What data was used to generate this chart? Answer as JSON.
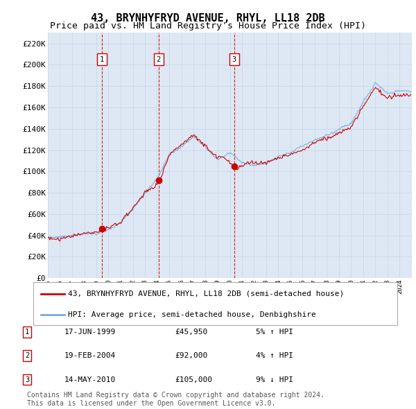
{
  "title": "43, BRYNHYFRYD AVENUE, RHYL, LL18 2DB",
  "subtitle": "Price paid vs. HM Land Registry's House Price Index (HPI)",
  "ylabel_ticks": [
    "£0",
    "£20K",
    "£40K",
    "£60K",
    "£80K",
    "£100K",
    "£120K",
    "£140K",
    "£160K",
    "£180K",
    "£200K",
    "£220K"
  ],
  "ytick_values": [
    0,
    20000,
    40000,
    60000,
    80000,
    100000,
    120000,
    140000,
    160000,
    180000,
    200000,
    220000
  ],
  "ylim": [
    0,
    230000
  ],
  "x_start_year": 1995,
  "x_end_year": 2024,
  "sale_prices": [
    45950,
    92000,
    105000
  ],
  "sale_labels": [
    "1",
    "2",
    "3"
  ],
  "sale_pct": [
    "5% ↑ HPI",
    "4% ↑ HPI",
    "9% ↓ HPI"
  ],
  "sale_date_strs": [
    "17-JUN-1999",
    "19-FEB-2004",
    "14-MAY-2010"
  ],
  "sale_price_strs": [
    "£45,950",
    "£92,000",
    "£105,000"
  ],
  "line_color_red": "#cc0000",
  "line_color_blue": "#7aabdb",
  "annotation_box_color": "#cc0000",
  "background_color": "#ffffff",
  "grid_color": "#c8d4e8",
  "plot_bg_color": "#dde8f4",
  "legend_label_red": "43, BRYNHYFRYD AVENUE, RHYL, LL18 2DB (semi-detached house)",
  "legend_label_blue": "HPI: Average price, semi-detached house, Denbighshire",
  "footer_text": "Contains HM Land Registry data © Crown copyright and database right 2024.\nThis data is licensed under the Open Government Licence v3.0.",
  "title_fontsize": 11,
  "subtitle_fontsize": 9.5,
  "tick_fontsize": 8,
  "legend_fontsize": 8,
  "footer_fontsize": 7,
  "dashed_line_color": "#cc0000",
  "hpi_base_vals": {
    "1995": 38000,
    "1996": 39000,
    "1997": 41000,
    "1998": 43000,
    "1999": 44000,
    "2000": 48000,
    "2001": 54000,
    "2002": 66000,
    "2003": 82000,
    "2004": 95000,
    "2005": 118000,
    "2006": 125000,
    "2007": 135000,
    "2008": 125000,
    "2009": 113000,
    "2010": 120000,
    "2011": 112000,
    "2012": 108000,
    "2013": 110000,
    "2014": 115000,
    "2015": 118000,
    "2016": 123000,
    "2017": 128000,
    "2018": 132000,
    "2019": 137000,
    "2020": 143000,
    "2021": 163000,
    "2022": 182000,
    "2023": 172000,
    "2024": 175000
  },
  "red_scale_factor": 1.0,
  "red_noise_scale": 1800,
  "blue_noise_scale": 1200
}
